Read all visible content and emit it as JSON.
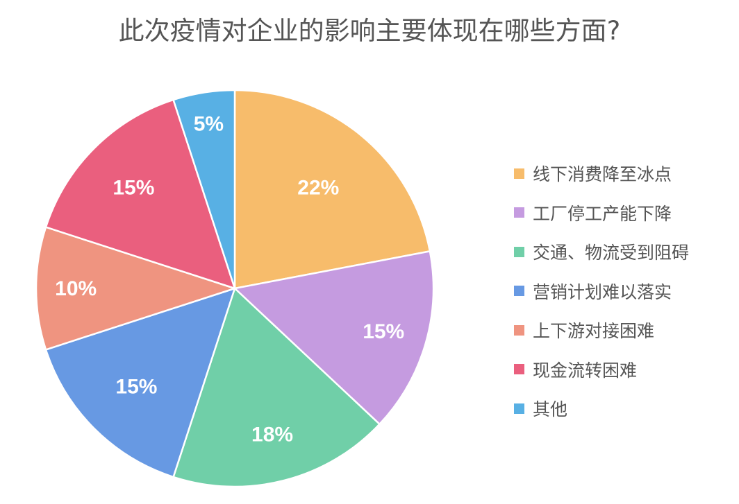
{
  "title": "此次疫情对企业的影响主要体现在哪些方面?",
  "chart_data": {
    "type": "pie",
    "title": "此次疫情对企业的影响主要体现在哪些方面?",
    "categories": [
      "线下消费降至冰点",
      "工厂停工产能下降",
      "交通、物流受到阻碍",
      "营销计划难以落实",
      "上下游对接困难",
      "现金流转困难",
      "其他"
    ],
    "values": [
      22,
      15,
      18,
      15,
      10,
      15,
      5
    ],
    "labels": [
      "22%",
      "15%",
      "18%",
      "15%",
      "10%",
      "15%",
      "5%"
    ],
    "colors": [
      "#F7BC6B",
      "#C59BE0",
      "#70CFA8",
      "#6799E3",
      "#EF9480",
      "#EA5F7E",
      "#58B0E4"
    ],
    "start_angle": "12 o'clock",
    "direction": "clockwise",
    "legend_position": "right",
    "unit": "%"
  },
  "legend": {
    "items": [
      {
        "label": "线下消费降至冰点",
        "color": "#F7BC6B"
      },
      {
        "label": "工厂停工产能下降",
        "color": "#C59BE0"
      },
      {
        "label": "交通、物流受到阻碍",
        "color": "#70CFA8"
      },
      {
        "label": "营销计划难以落实",
        "color": "#6799E3"
      },
      {
        "label": "上下游对接困难",
        "color": "#EF9480"
      },
      {
        "label": "现金流转困难",
        "color": "#EA5F7E"
      },
      {
        "label": "其他",
        "color": "#58B0E4"
      }
    ]
  }
}
